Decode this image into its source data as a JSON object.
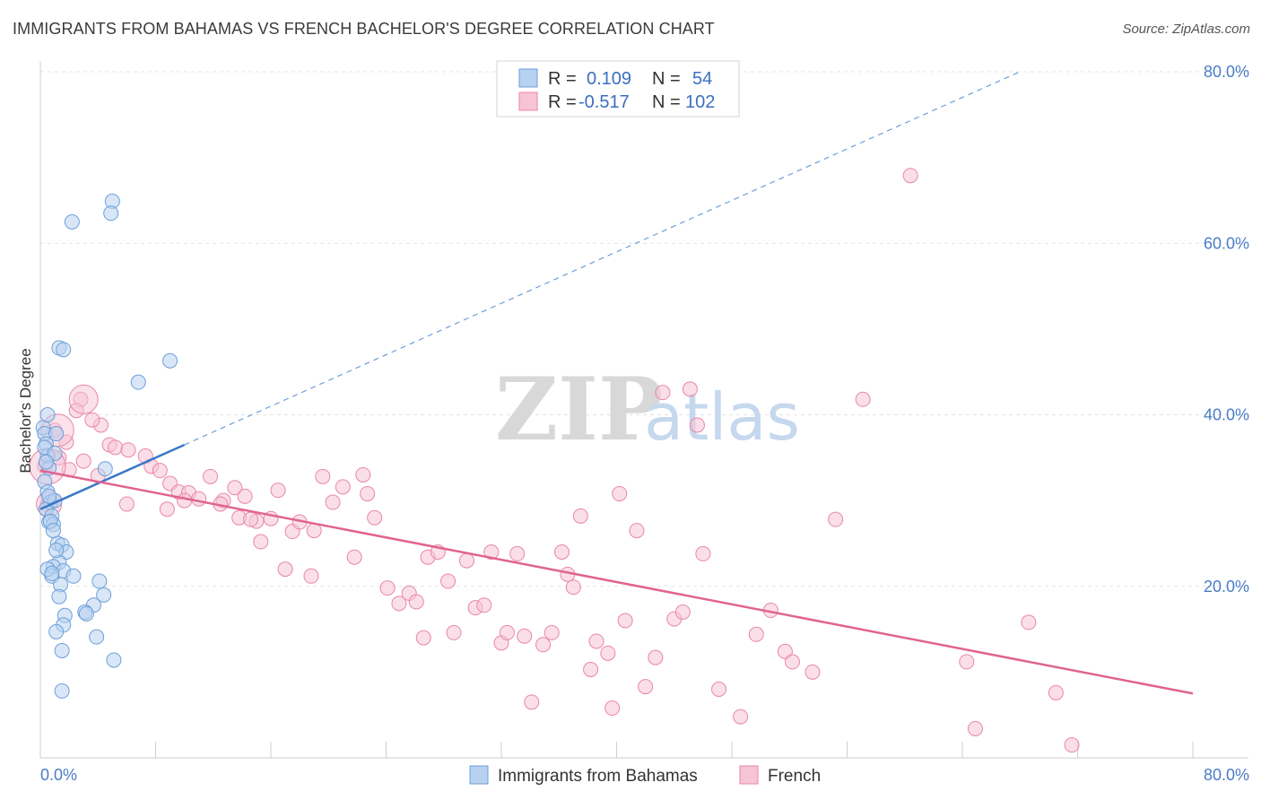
{
  "title": "IMMIGRANTS FROM BAHAMAS VS FRENCH BACHELOR'S DEGREE CORRELATION CHART",
  "source": "Source: ZipAtlas.com",
  "watermark": {
    "zip": "ZIP",
    "atlas": "atlas"
  },
  "colors": {
    "blue": "#6c9fd8",
    "blue_fill": "#b8d1f0",
    "blue_line": "#3a78c9",
    "pink": "#e986a8",
    "pink_fill": "#f6c4d6",
    "pink_line": "#e0648f"
  },
  "legend": {
    "rows": [
      {
        "r_label": "R =",
        "r_value": "0.109",
        "n_label": "N =",
        "n_value": "54"
      },
      {
        "r_label": "R =",
        "r_value": "-0.517",
        "n_label": "N =",
        "n_value": "102"
      }
    ]
  },
  "bottom_legend": [
    "Immigrants from Bahamas",
    "French"
  ],
  "chart_data": {
    "type": "scatter",
    "title": "IMMIGRANTS FROM BAHAMAS VS FRENCH BACHELOR'S DEGREE CORRELATION CHART",
    "xlabel": "",
    "ylabel": "Bachelor's Degree",
    "xlim": [
      0,
      80
    ],
    "ylim": [
      0,
      80
    ],
    "x_tick_labels": [
      "0.0%",
      "80.0%"
    ],
    "y_tick_labels": [
      "20.0%",
      "40.0%",
      "60.0%",
      "80.0%"
    ],
    "y_ticks": [
      20,
      40,
      60,
      80
    ],
    "grid": true,
    "legend_position": "top-center",
    "series": [
      {
        "name": "Immigrants from Bahamas",
        "trend": {
          "x0": 0,
          "y0": 29,
          "x1": 10,
          "y1": 36.5,
          "dashed_to_x": 68,
          "dashed_to_y": 80
        },
        "points": [
          [
            0.2,
            38.5
          ],
          [
            0.3,
            37.8
          ],
          [
            0.4,
            36.6
          ],
          [
            0.5,
            35.2
          ],
          [
            0.6,
            33.8
          ],
          [
            0.3,
            32.2
          ],
          [
            0.5,
            31.0
          ],
          [
            0.7,
            29.8
          ],
          [
            0.4,
            29.0
          ],
          [
            0.8,
            28.2
          ],
          [
            0.6,
            27.5
          ],
          [
            0.9,
            27.2
          ],
          [
            0.5,
            40.0
          ],
          [
            1.1,
            37.8
          ],
          [
            0.3,
            36.2
          ],
          [
            1.0,
            35.5
          ],
          [
            1.3,
            47.8
          ],
          [
            1.6,
            47.6
          ],
          [
            2.2,
            62.5
          ],
          [
            5.0,
            64.9
          ],
          [
            4.9,
            63.5
          ],
          [
            9.0,
            46.3
          ],
          [
            6.8,
            43.8
          ],
          [
            4.5,
            33.7
          ],
          [
            1.0,
            30.0
          ],
          [
            0.7,
            27.6
          ],
          [
            1.2,
            25.0
          ],
          [
            1.5,
            24.8
          ],
          [
            1.8,
            24.0
          ],
          [
            1.3,
            22.8
          ],
          [
            0.9,
            22.3
          ],
          [
            1.6,
            21.8
          ],
          [
            2.3,
            21.2
          ],
          [
            0.8,
            21.2
          ],
          [
            1.4,
            20.2
          ],
          [
            1.3,
            18.8
          ],
          [
            4.1,
            20.6
          ],
          [
            4.4,
            19.0
          ],
          [
            3.7,
            17.8
          ],
          [
            3.1,
            17.0
          ],
          [
            3.2,
            16.8
          ],
          [
            1.7,
            16.6
          ],
          [
            1.6,
            15.5
          ],
          [
            1.1,
            14.7
          ],
          [
            3.9,
            14.1
          ],
          [
            1.5,
            12.5
          ],
          [
            5.1,
            11.4
          ],
          [
            1.5,
            7.8
          ],
          [
            0.4,
            34.5
          ],
          [
            0.6,
            30.5
          ],
          [
            0.9,
            26.5
          ],
          [
            1.1,
            24.2
          ],
          [
            0.5,
            22.0
          ],
          [
            0.8,
            21.5
          ]
        ]
      },
      {
        "name": "French",
        "trend": {
          "x0": 0,
          "y0": 33.5,
          "x1": 80,
          "y1": 7.5
        },
        "points": [
          [
            0.3,
            34.0
          ],
          [
            0.5,
            29.5
          ],
          [
            1.0,
            38.2
          ],
          [
            2.8,
            41.8
          ],
          [
            2.5,
            40.5
          ],
          [
            4.2,
            38.8
          ],
          [
            3.6,
            39.4
          ],
          [
            4.8,
            36.5
          ],
          [
            5.2,
            36.2
          ],
          [
            6.1,
            35.9
          ],
          [
            7.3,
            35.2
          ],
          [
            7.7,
            34.0
          ],
          [
            8.3,
            33.5
          ],
          [
            9.0,
            32.0
          ],
          [
            9.6,
            31.0
          ],
          [
            10.3,
            30.9
          ],
          [
            11.0,
            30.2
          ],
          [
            11.8,
            32.8
          ],
          [
            12.7,
            30.0
          ],
          [
            13.5,
            31.5
          ],
          [
            14.2,
            30.5
          ],
          [
            13.8,
            28.0
          ],
          [
            15.0,
            27.6
          ],
          [
            15.3,
            25.2
          ],
          [
            16.0,
            27.9
          ],
          [
            16.5,
            31.2
          ],
          [
            17.5,
            26.4
          ],
          [
            18.0,
            27.5
          ],
          [
            18.8,
            21.2
          ],
          [
            19.6,
            32.8
          ],
          [
            20.3,
            29.8
          ],
          [
            21.0,
            31.6
          ],
          [
            21.8,
            23.4
          ],
          [
            22.4,
            33.0
          ],
          [
            22.7,
            30.8
          ],
          [
            23.2,
            28.0
          ],
          [
            24.1,
            19.8
          ],
          [
            24.9,
            18.0
          ],
          [
            25.6,
            19.2
          ],
          [
            26.1,
            18.2
          ],
          [
            26.6,
            14.0
          ],
          [
            26.9,
            23.4
          ],
          [
            27.6,
            24.0
          ],
          [
            28.3,
            20.6
          ],
          [
            28.7,
            14.6
          ],
          [
            29.6,
            23.0
          ],
          [
            30.2,
            17.5
          ],
          [
            30.8,
            17.8
          ],
          [
            31.3,
            24.0
          ],
          [
            32.0,
            13.4
          ],
          [
            32.4,
            14.6
          ],
          [
            33.1,
            23.8
          ],
          [
            33.6,
            14.2
          ],
          [
            34.1,
            6.5
          ],
          [
            34.9,
            13.2
          ],
          [
            35.5,
            14.6
          ],
          [
            36.2,
            24.0
          ],
          [
            36.6,
            21.4
          ],
          [
            37.0,
            19.9
          ],
          [
            37.5,
            28.2
          ],
          [
            38.2,
            10.3
          ],
          [
            38.6,
            13.6
          ],
          [
            39.4,
            12.2
          ],
          [
            39.7,
            5.8
          ],
          [
            40.2,
            30.8
          ],
          [
            40.6,
            16.0
          ],
          [
            41.4,
            26.5
          ],
          [
            42.0,
            8.3
          ],
          [
            42.7,
            11.7
          ],
          [
            43.2,
            42.6
          ],
          [
            44.0,
            16.2
          ],
          [
            44.6,
            17.0
          ],
          [
            45.1,
            43.0
          ],
          [
            45.6,
            38.8
          ],
          [
            46.0,
            23.8
          ],
          [
            47.1,
            8.0
          ],
          [
            48.6,
            4.8
          ],
          [
            49.7,
            14.4
          ],
          [
            50.7,
            17.2
          ],
          [
            51.7,
            12.4
          ],
          [
            52.2,
            11.2
          ],
          [
            53.6,
            10.0
          ],
          [
            55.2,
            27.8
          ],
          [
            57.1,
            41.8
          ],
          [
            60.4,
            67.9
          ],
          [
            64.3,
            11.2
          ],
          [
            64.9,
            3.4
          ],
          [
            68.6,
            15.8
          ],
          [
            70.5,
            7.6
          ],
          [
            71.6,
            1.5
          ],
          [
            1.3,
            35.0
          ],
          [
            2.0,
            33.6
          ],
          [
            3.0,
            34.6
          ],
          [
            4.0,
            32.9
          ],
          [
            6.0,
            29.6
          ],
          [
            8.8,
            29.0
          ],
          [
            10.0,
            30.0
          ],
          [
            12.5,
            29.6
          ],
          [
            14.6,
            27.8
          ],
          [
            17.0,
            22.0
          ],
          [
            19.0,
            26.5
          ],
          [
            1.8,
            36.8
          ]
        ]
      }
    ]
  }
}
